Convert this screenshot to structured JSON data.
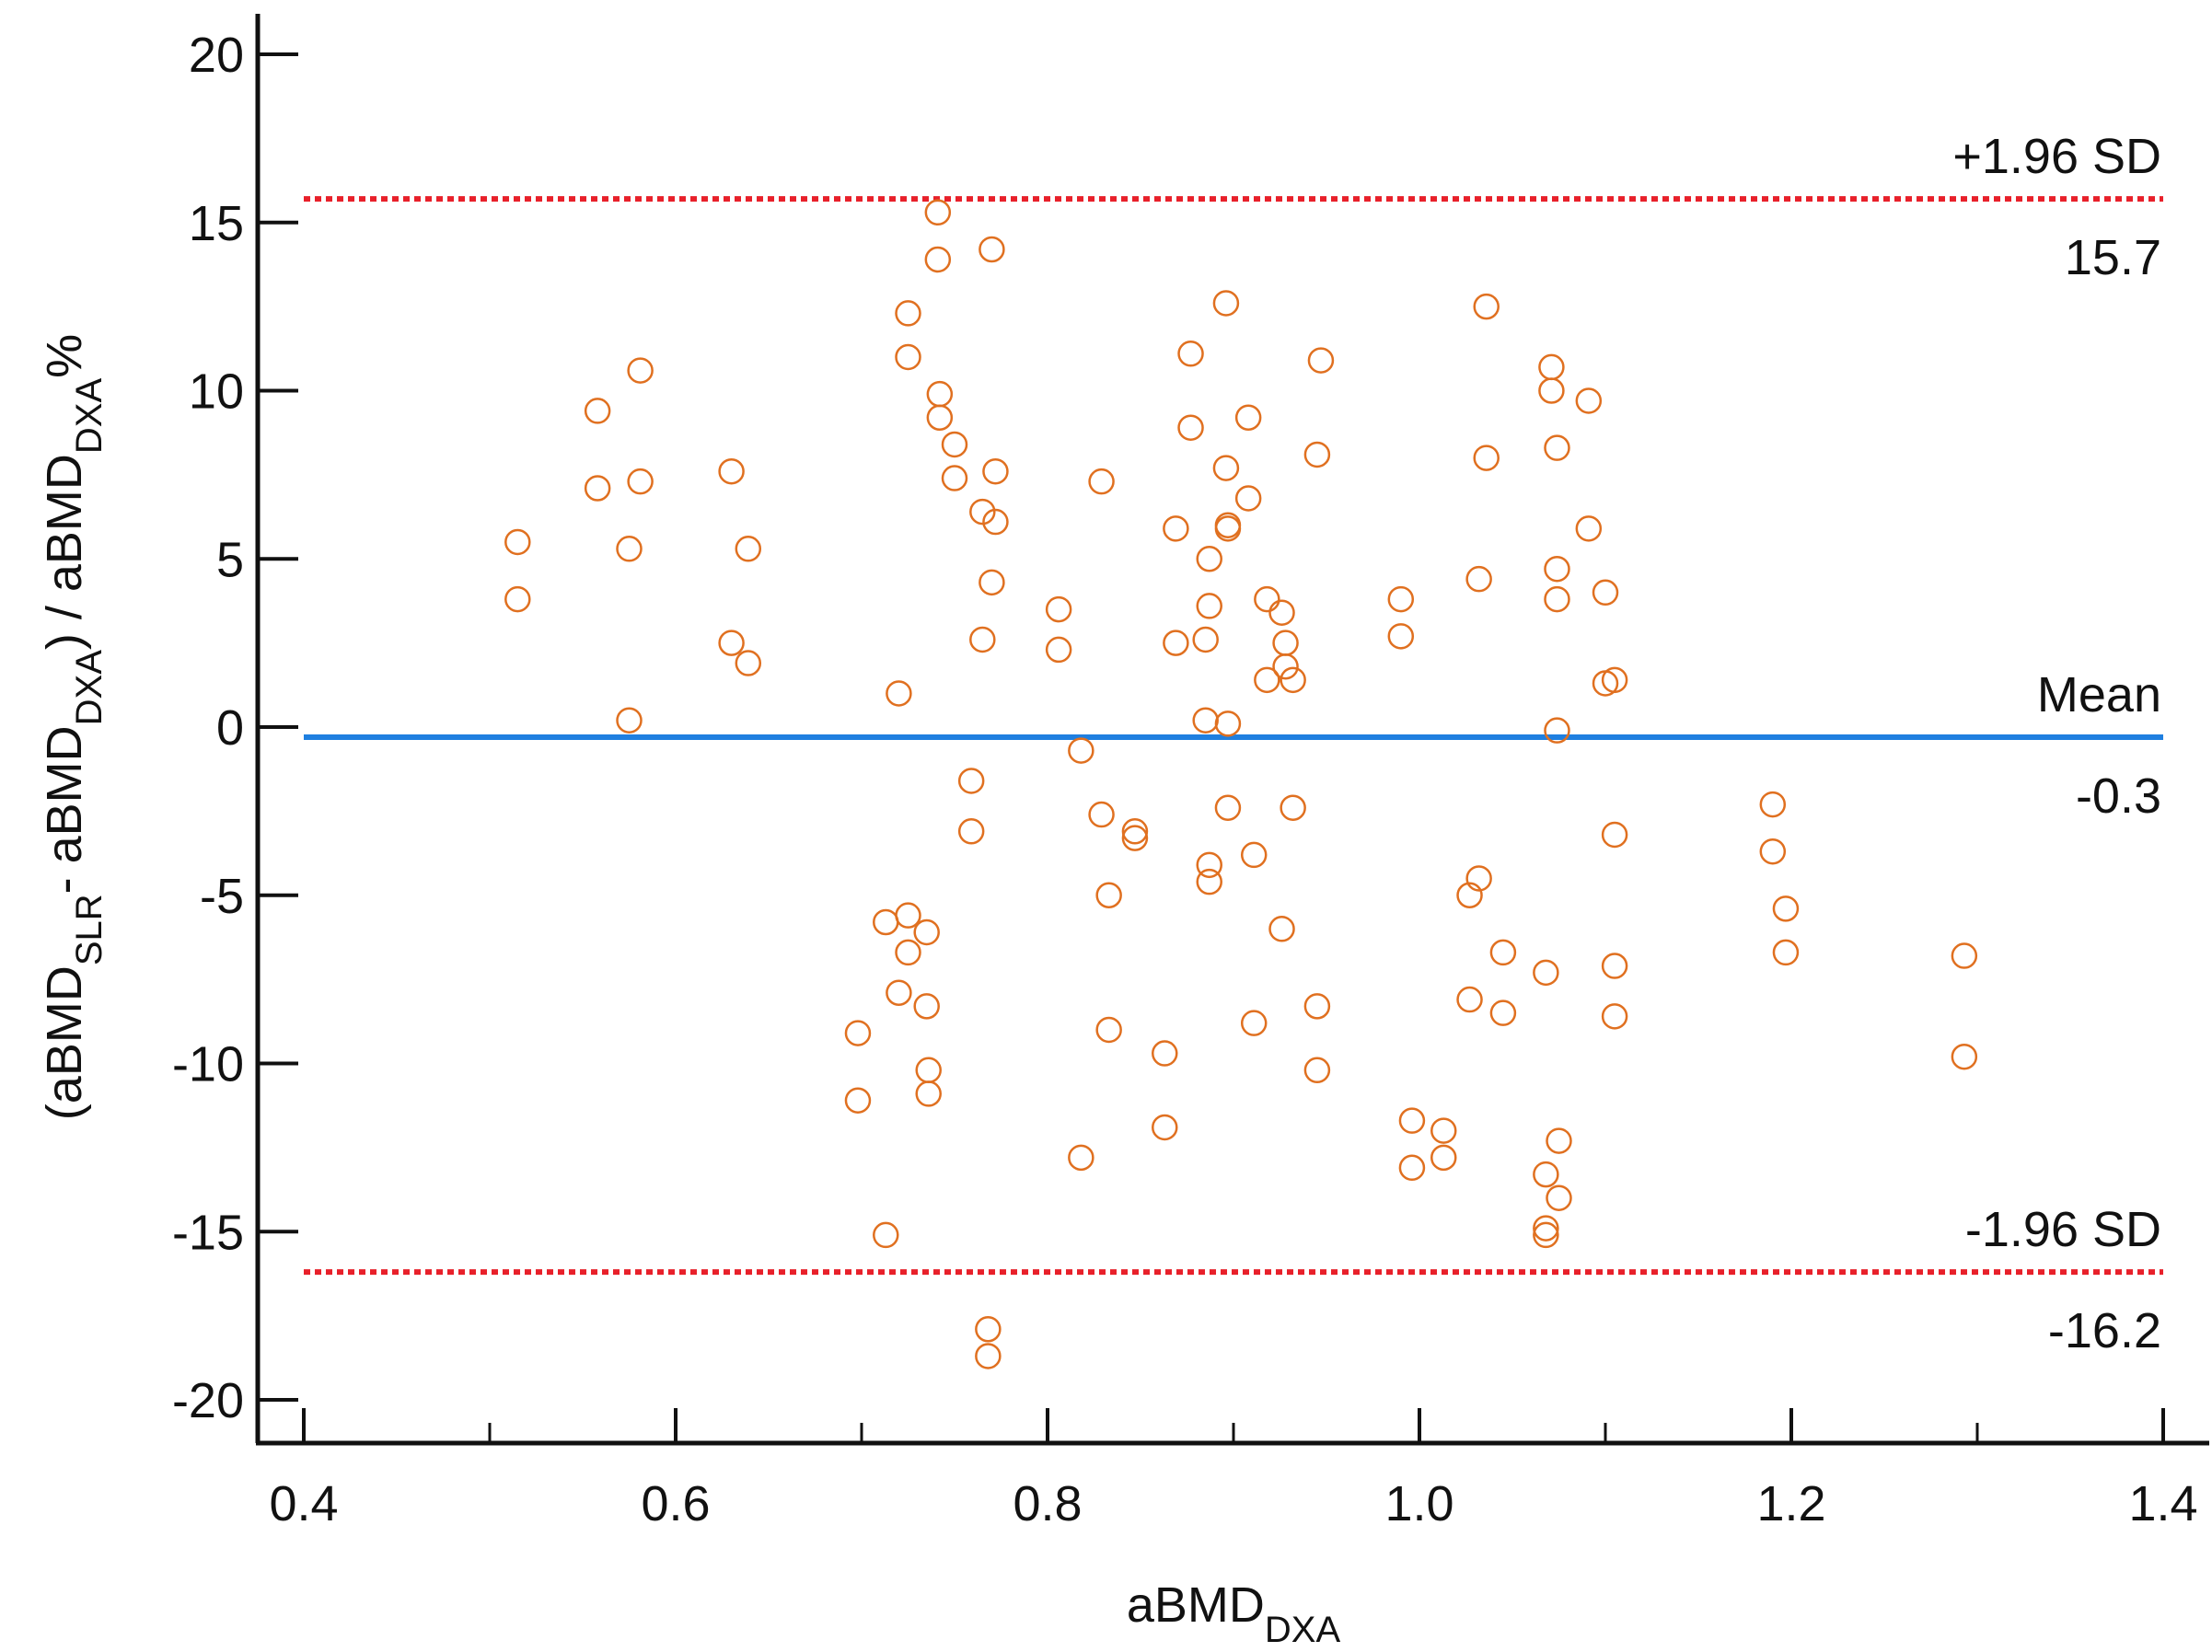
{
  "chart_data": {
    "type": "scatter",
    "xlabel": {
      "main": "aBMD",
      "sub": "DXA"
    },
    "ylabel": {
      "parts": [
        {
          "text": "(aBMD",
          "sub": false
        },
        {
          "text": "SLR",
          "sub": true
        },
        {
          "text": "- aBMD",
          "sub": false
        },
        {
          "text": "DXA",
          "sub": true
        },
        {
          "text": ") / aBMD",
          "sub": false
        },
        {
          "text": "DXA",
          "sub": true
        },
        {
          "text": "%",
          "sub": false
        }
      ]
    },
    "xlim": [
      0.38,
      1.42
    ],
    "ylim": [
      -21.2,
      21.2
    ],
    "x_ticks": [
      0.4,
      0.6,
      0.8,
      1.0,
      1.2,
      1.4
    ],
    "x_tick_labels": [
      "0.4",
      "0.6",
      "0.8",
      "1.0",
      "1.2",
      "1.4"
    ],
    "x_minor_ticks": [
      0.5,
      0.7,
      0.9,
      1.1,
      1.3
    ],
    "y_ticks": [
      20,
      15,
      10,
      5,
      0,
      -5,
      -10,
      -15,
      -20
    ],
    "y_tick_labels": [
      "20",
      "15",
      "10",
      "5",
      "0",
      "-5",
      "-10",
      "-15",
      "-20"
    ],
    "grid": false,
    "reference_lines": [
      {
        "name": "+1.96 SD",
        "value": 15.7,
        "value_label": "15.7",
        "color": "#e8202a",
        "style": "dotted"
      },
      {
        "name": "Mean",
        "value": -0.3,
        "value_label": "-0.3",
        "color": "#1f7fe0",
        "style": "solid"
      },
      {
        "name": "-1.96 SD",
        "value": -16.2,
        "value_label": "-16.2",
        "color": "#e8202a",
        "style": "dotted"
      }
    ],
    "marker": {
      "shape": "open-circle",
      "color": "#e07020"
    },
    "points": [
      [
        0.515,
        5.5
      ],
      [
        0.515,
        3.8
      ],
      [
        0.558,
        9.4
      ],
      [
        0.558,
        7.1
      ],
      [
        0.575,
        5.3
      ],
      [
        0.575,
        0.2
      ],
      [
        0.581,
        7.3
      ],
      [
        0.581,
        10.6
      ],
      [
        0.63,
        7.6
      ],
      [
        0.63,
        2.5
      ],
      [
        0.639,
        5.3
      ],
      [
        0.639,
        1.9
      ],
      [
        0.698,
        -9.1
      ],
      [
        0.698,
        -11.1
      ],
      [
        0.713,
        -5.8
      ],
      [
        0.713,
        -15.1
      ],
      [
        0.72,
        1.0
      ],
      [
        0.72,
        -7.9
      ],
      [
        0.725,
        12.3
      ],
      [
        0.725,
        11.0
      ],
      [
        0.725,
        -5.6
      ],
      [
        0.725,
        -6.7
      ],
      [
        0.735,
        -6.1
      ],
      [
        0.735,
        -8.3
      ],
      [
        0.736,
        -10.2
      ],
      [
        0.736,
        -10.9
      ],
      [
        0.741,
        15.3
      ],
      [
        0.741,
        13.9
      ],
      [
        0.742,
        9.9
      ],
      [
        0.742,
        9.2
      ],
      [
        0.75,
        8.4
      ],
      [
        0.75,
        7.4
      ],
      [
        0.759,
        -1.6
      ],
      [
        0.759,
        -3.1
      ],
      [
        0.765,
        6.4
      ],
      [
        0.765,
        2.6
      ],
      [
        0.768,
        -17.9
      ],
      [
        0.768,
        -18.7
      ],
      [
        0.77,
        14.2
      ],
      [
        0.77,
        4.3
      ],
      [
        0.772,
        7.6
      ],
      [
        0.772,
        6.1
      ],
      [
        0.806,
        3.5
      ],
      [
        0.806,
        2.3
      ],
      [
        0.818,
        -0.7
      ],
      [
        0.818,
        -12.8
      ],
      [
        0.829,
        7.3
      ],
      [
        0.829,
        -2.6
      ],
      [
        0.833,
        -5.0
      ],
      [
        0.833,
        -9.0
      ],
      [
        0.847,
        -3.1
      ],
      [
        0.847,
        -3.3
      ],
      [
        0.863,
        -9.7
      ],
      [
        0.863,
        -11.9
      ],
      [
        0.869,
        5.9
      ],
      [
        0.869,
        2.5
      ],
      [
        0.877,
        11.1
      ],
      [
        0.877,
        8.9
      ],
      [
        0.885,
        2.6
      ],
      [
        0.885,
        0.2
      ],
      [
        0.887,
        5.0
      ],
      [
        0.887,
        3.6
      ],
      [
        0.887,
        -4.1
      ],
      [
        0.887,
        -4.6
      ],
      [
        0.896,
        12.6
      ],
      [
        0.896,
        7.7
      ],
      [
        0.897,
        6.0
      ],
      [
        0.897,
        5.9
      ],
      [
        0.897,
        0.1
      ],
      [
        0.897,
        -2.4
      ],
      [
        0.908,
        9.2
      ],
      [
        0.908,
        6.8
      ],
      [
        0.911,
        -3.8
      ],
      [
        0.911,
        -8.8
      ],
      [
        0.918,
        3.8
      ],
      [
        0.918,
        1.4
      ],
      [
        0.926,
        3.4
      ],
      [
        0.926,
        -6.0
      ],
      [
        0.928,
        2.5
      ],
      [
        0.928,
        1.8
      ],
      [
        0.932,
        1.4
      ],
      [
        0.932,
        -2.4
      ],
      [
        0.945,
        8.1
      ],
      [
        0.945,
        -8.3
      ],
      [
        0.945,
        -10.2
      ],
      [
        0.947,
        10.9
      ],
      [
        0.99,
        3.8
      ],
      [
        0.99,
        2.7
      ],
      [
        0.996,
        -11.7
      ],
      [
        0.996,
        -13.1
      ],
      [
        1.013,
        -12.0
      ],
      [
        1.013,
        -12.8
      ],
      [
        1.027,
        -5.0
      ],
      [
        1.027,
        -8.1
      ],
      [
        1.032,
        4.4
      ],
      [
        1.032,
        -4.5
      ],
      [
        1.036,
        12.5
      ],
      [
        1.036,
        8.0
      ],
      [
        1.045,
        -6.7
      ],
      [
        1.045,
        -8.5
      ],
      [
        1.068,
        -14.9
      ],
      [
        1.068,
        -15.1
      ],
      [
        1.068,
        -13.3
      ],
      [
        1.068,
        -7.3
      ],
      [
        1.071,
        10.7
      ],
      [
        1.071,
        10.0
      ],
      [
        1.074,
        8.3
      ],
      [
        1.074,
        4.7
      ],
      [
        1.074,
        3.8
      ],
      [
        1.074,
        -0.1
      ],
      [
        1.075,
        -12.3
      ],
      [
        1.075,
        -14.0
      ],
      [
        1.091,
        9.7
      ],
      [
        1.091,
        5.9
      ],
      [
        1.1,
        4.0
      ],
      [
        1.1,
        1.3
      ],
      [
        1.105,
        1.4
      ],
      [
        1.105,
        -3.2
      ],
      [
        1.105,
        -7.1
      ],
      [
        1.105,
        -8.6
      ],
      [
        1.19,
        -2.3
      ],
      [
        1.19,
        -3.7
      ],
      [
        1.197,
        -5.4
      ],
      [
        1.197,
        -6.7
      ],
      [
        1.293,
        -6.8
      ],
      [
        1.293,
        -9.8
      ]
    ]
  }
}
